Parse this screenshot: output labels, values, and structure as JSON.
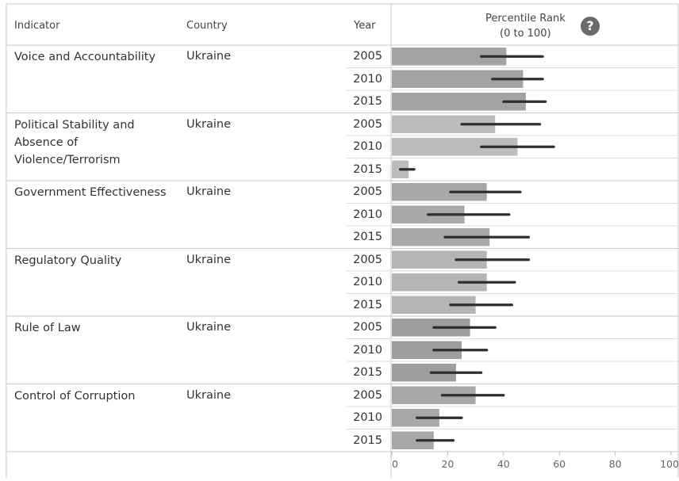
{
  "header": {
    "indicator": "Indicator",
    "country": "Country",
    "year": "Year",
    "measure_line1": "Percentile Rank",
    "measure_line2": "(0 to 100)",
    "help_symbol": "?"
  },
  "chart_data": {
    "type": "bar",
    "title": "",
    "xlabel": "",
    "ylabel": "",
    "xlim": [
      0,
      100
    ],
    "x_ticks": [
      0,
      20,
      40,
      60,
      80,
      100
    ],
    "groups": [
      {
        "indicator": "Voice and Accountability",
        "country": "Ukraine",
        "color": "#a3a3a3",
        "rows": [
          {
            "year": "2005",
            "value": 41,
            "low": 32,
            "high": 54
          },
          {
            "year": "2010",
            "value": 47,
            "low": 36,
            "high": 54
          },
          {
            "year": "2015",
            "value": 48,
            "low": 40,
            "high": 55
          }
        ]
      },
      {
        "indicator": "Political Stability and\nAbsence of\nViolence/Terrorism",
        "country": "Ukraine",
        "color": "#bcbcbc",
        "rows": [
          {
            "year": "2005",
            "value": 37,
            "low": 25,
            "high": 53
          },
          {
            "year": "2010",
            "value": 45,
            "low": 32,
            "high": 58
          },
          {
            "year": "2015",
            "value": 6,
            "low": 3,
            "high": 8
          }
        ]
      },
      {
        "indicator": "Government Effectiveness",
        "country": "Ukraine",
        "color": "#a8a8a8",
        "rows": [
          {
            "year": "2005",
            "value": 34,
            "low": 21,
            "high": 46
          },
          {
            "year": "2010",
            "value": 26,
            "low": 13,
            "high": 42
          },
          {
            "year": "2015",
            "value": 35,
            "low": 19,
            "high": 49
          }
        ]
      },
      {
        "indicator": "Regulatory Quality",
        "country": "Ukraine",
        "color": "#b5b5b5",
        "rows": [
          {
            "year": "2005",
            "value": 34,
            "low": 23,
            "high": 49
          },
          {
            "year": "2010",
            "value": 34,
            "low": 24,
            "high": 44
          },
          {
            "year": "2015",
            "value": 30,
            "low": 21,
            "high": 43
          }
        ]
      },
      {
        "indicator": "Rule of Law",
        "country": "Ukraine",
        "color": "#9e9e9e",
        "rows": [
          {
            "year": "2005",
            "value": 28,
            "low": 15,
            "high": 37
          },
          {
            "year": "2010",
            "value": 25,
            "low": 15,
            "high": 34
          },
          {
            "year": "2015",
            "value": 23,
            "low": 14,
            "high": 32
          }
        ]
      },
      {
        "indicator": "Control of Corruption",
        "country": "Ukraine",
        "color": "#a8a8a8",
        "rows": [
          {
            "year": "2005",
            "value": 30,
            "low": 18,
            "high": 40
          },
          {
            "year": "2010",
            "value": 17,
            "low": 9,
            "high": 25
          },
          {
            "year": "2015",
            "value": 15,
            "low": 9,
            "high": 22
          }
        ]
      }
    ]
  }
}
